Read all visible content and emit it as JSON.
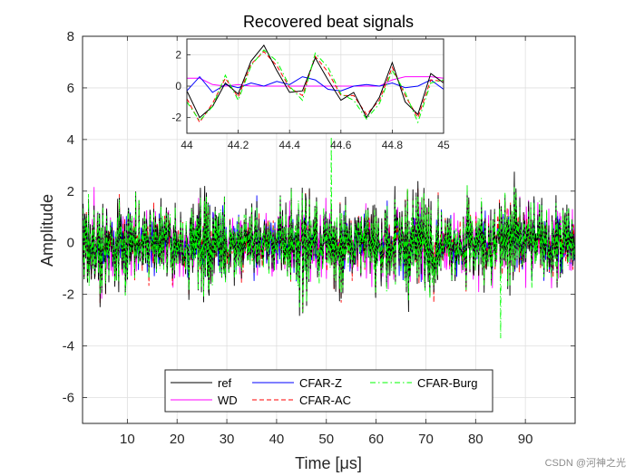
{
  "chart_data": {
    "type": "line",
    "title": "Recovered beat signals",
    "xlabel": "Time [μs]",
    "ylabel": "Amplitude",
    "xlim": [
      1,
      100
    ],
    "ylim": [
      -7,
      8
    ],
    "xticks": [
      10,
      20,
      30,
      40,
      50,
      60,
      70,
      80,
      90
    ],
    "yticks": [
      -6,
      -4,
      -2,
      0,
      2,
      4,
      6,
      8
    ],
    "grid": true,
    "legend_position": "bottom-center",
    "series": [
      {
        "name": "ref",
        "color": "#000000",
        "style": "solid",
        "description": "noise-like beat signal, amplitude mostly within ±3"
      },
      {
        "name": "WD",
        "color": "#ff00ff",
        "style": "solid",
        "description": "recovered by WD, amplitude mostly within ±2.5"
      },
      {
        "name": "CFAR-Z",
        "color": "#0000ff",
        "style": "solid",
        "description": "recovered by CFAR-Z, amplitude mostly within ±2.5"
      },
      {
        "name": "CFAR-AC",
        "color": "#ff0000",
        "style": "dashed",
        "description": "recovered by CFAR-AC, amplitude mostly within ±2.5"
      },
      {
        "name": "CFAR-Burg",
        "color": "#00ff00",
        "style": "dash-dot",
        "description": "recovered by CFAR-Burg, peaks near 4.1 at t≈51 and -3.7 at t≈85"
      }
    ],
    "inset": {
      "xlim": [
        44,
        45
      ],
      "ylim": [
        -3,
        3
      ],
      "xticks": [
        44,
        44.2,
        44.4,
        44.6,
        44.8,
        45
      ],
      "xtick_labels": [
        "44",
        "44.2",
        "44.4",
        "44.6",
        "44.8",
        "45"
      ],
      "yticks": [
        -2,
        0,
        2
      ],
      "series": {
        "x": [
          44.0,
          44.05,
          44.1,
          44.15,
          44.2,
          44.25,
          44.3,
          44.35,
          44.4,
          44.45,
          44.5,
          44.55,
          44.6,
          44.65,
          44.7,
          44.75,
          44.8,
          44.85,
          44.9,
          44.95,
          45.0
        ],
        "ref": [
          -0.3,
          -2.0,
          -1.3,
          0.2,
          -0.5,
          1.6,
          2.6,
          1.0,
          -0.4,
          -0.3,
          1.8,
          0.4,
          -0.9,
          -0.4,
          -2.0,
          -0.7,
          1.5,
          -1.0,
          -1.8,
          0.8,
          0.2
        ],
        "WD": [
          0.5,
          0.5,
          0.1,
          0.0,
          0.1,
          0.0,
          0.0,
          0.0,
          0.0,
          0.0,
          0.0,
          0.0,
          0.0,
          0.0,
          0.0,
          0.0,
          0.4,
          0.6,
          0.6,
          0.6,
          0.5
        ],
        "CFAR-Z": [
          -0.3,
          0.6,
          -0.4,
          0.1,
          -0.1,
          0.2,
          0.0,
          0.3,
          0.1,
          0.6,
          0.4,
          -0.2,
          -0.3,
          0.0,
          0.1,
          0.0,
          0.2,
          -0.1,
          0.0,
          0.4,
          -0.2
        ],
        "CFAR-AC": [
          -0.8,
          -2.3,
          -1.1,
          0.5,
          -0.7,
          1.4,
          2.2,
          1.3,
          -0.1,
          -0.6,
          1.9,
          0.9,
          -0.6,
          -0.6,
          -1.8,
          -0.9,
          1.2,
          -0.6,
          -2.0,
          0.4,
          0.3
        ],
        "CFAR-Burg": [
          -1.0,
          -2.2,
          -1.3,
          0.7,
          -0.9,
          1.3,
          2.3,
          1.6,
          0.0,
          -0.9,
          2.1,
          1.2,
          -0.5,
          -0.9,
          -2.1,
          -1.1,
          1.0,
          -0.4,
          -2.3,
          0.2,
          0.4
        ]
      }
    }
  },
  "watermark": "CSDN @河神之光"
}
